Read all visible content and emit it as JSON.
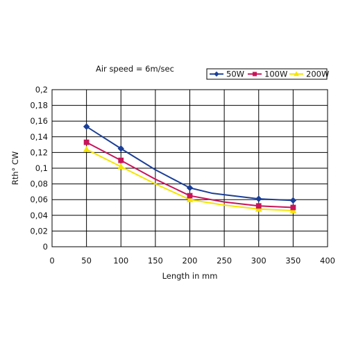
{
  "chart_data": {
    "type": "line",
    "annotation": "Air speed = 6m/sec",
    "xlabel": "Length in mm",
    "ylabel": "Rth° CW",
    "xlim": [
      0,
      400
    ],
    "ylim": [
      0,
      0.2
    ],
    "xticks": [
      0,
      50,
      100,
      150,
      200,
      250,
      300,
      350,
      400
    ],
    "xtick_labels": [
      "0",
      "50",
      "100",
      "150",
      "200",
      "250",
      "300",
      "350",
      "400"
    ],
    "yticks": [
      0,
      0.02,
      0.04,
      0.06,
      0.08,
      0.1,
      0.12,
      0.14,
      0.16,
      0.18,
      0.2
    ],
    "ytick_labels": [
      "0",
      "0,02",
      "0,04",
      "0,06",
      "0,08",
      "0,1",
      "0,12",
      "0,14",
      "0,16",
      "0,18",
      "0,2"
    ],
    "grid": true,
    "legend_position": "top-right",
    "series": [
      {
        "name": "50W",
        "color": "#1b3f97",
        "marker": "diamond",
        "x": [
          50,
          100,
          150,
          200,
          233,
          300,
          350
        ],
        "y": [
          0.153,
          0.125,
          0.098,
          0.075,
          0.068,
          0.061,
          0.059
        ],
        "marker_x": [
          50,
          100,
          200,
          300,
          350
        ],
        "marker_y": [
          0.153,
          0.125,
          0.075,
          0.061,
          0.059
        ]
      },
      {
        "name": "100W",
        "color": "#c8145a",
        "marker": "square",
        "x": [
          50,
          100,
          150,
          200,
          250,
          300,
          350
        ],
        "y": [
          0.133,
          0.11,
          0.086,
          0.065,
          0.057,
          0.052,
          0.05
        ],
        "marker_x": [
          50,
          100,
          200,
          300,
          350
        ],
        "marker_y": [
          0.133,
          0.11,
          0.065,
          0.052,
          0.05
        ]
      },
      {
        "name": "200W",
        "color": "#f5e400",
        "marker": "triangle",
        "x": [
          50,
          100,
          150,
          200,
          250,
          300,
          350
        ],
        "y": [
          0.124,
          0.102,
          0.08,
          0.06,
          0.053,
          0.048,
          0.046
        ],
        "marker_x": [
          50,
          100,
          200,
          300,
          350
        ],
        "marker_y": [
          0.124,
          0.102,
          0.06,
          0.048,
          0.046
        ]
      }
    ]
  }
}
